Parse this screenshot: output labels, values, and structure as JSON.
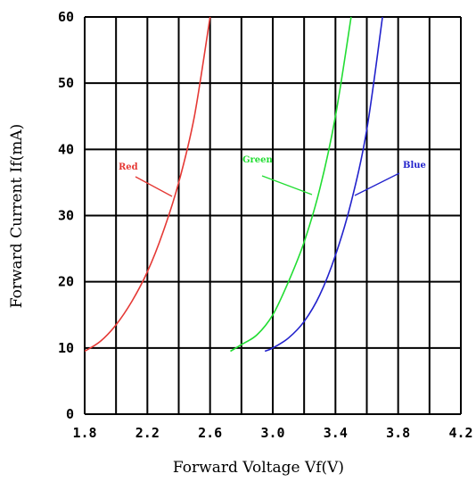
{
  "chart_data": {
    "type": "line",
    "title": "",
    "xlabel": "Forward Voltage Vf(V)",
    "ylabel": "Forward Current If(mA)",
    "xlim": [
      1.8,
      4.2
    ],
    "ylim": [
      0,
      60
    ],
    "x_ticks": [
      "1.8",
      "2.2",
      "2.6",
      "3.0",
      "3.4",
      "3.8",
      "4.2"
    ],
    "y_ticks": [
      "0",
      "10",
      "20",
      "30",
      "40",
      "50",
      "60"
    ],
    "grid": true,
    "series": [
      {
        "name": "Red",
        "color": "#e53935",
        "points": [
          [
            1.8,
            9.5
          ],
          [
            1.9,
            11
          ],
          [
            2.0,
            13.5
          ],
          [
            2.1,
            17
          ],
          [
            2.2,
            21.5
          ],
          [
            2.3,
            27.5
          ],
          [
            2.4,
            35
          ],
          [
            2.5,
            45
          ],
          [
            2.6,
            60
          ]
        ]
      },
      {
        "name": "Green",
        "color": "#22dd33",
        "points": [
          [
            2.73,
            9.5
          ],
          [
            2.8,
            10.5
          ],
          [
            2.9,
            12
          ],
          [
            3.0,
            15
          ],
          [
            3.1,
            20
          ],
          [
            3.2,
            26
          ],
          [
            3.3,
            34
          ],
          [
            3.4,
            45
          ],
          [
            3.5,
            60
          ]
        ]
      },
      {
        "name": "Blue",
        "color": "#2222cc",
        "points": [
          [
            2.95,
            9.5
          ],
          [
            3.0,
            10
          ],
          [
            3.1,
            11.5
          ],
          [
            3.2,
            14
          ],
          [
            3.3,
            18
          ],
          [
            3.4,
            24
          ],
          [
            3.5,
            32
          ],
          [
            3.6,
            43
          ],
          [
            3.7,
            60
          ]
        ]
      }
    ]
  }
}
